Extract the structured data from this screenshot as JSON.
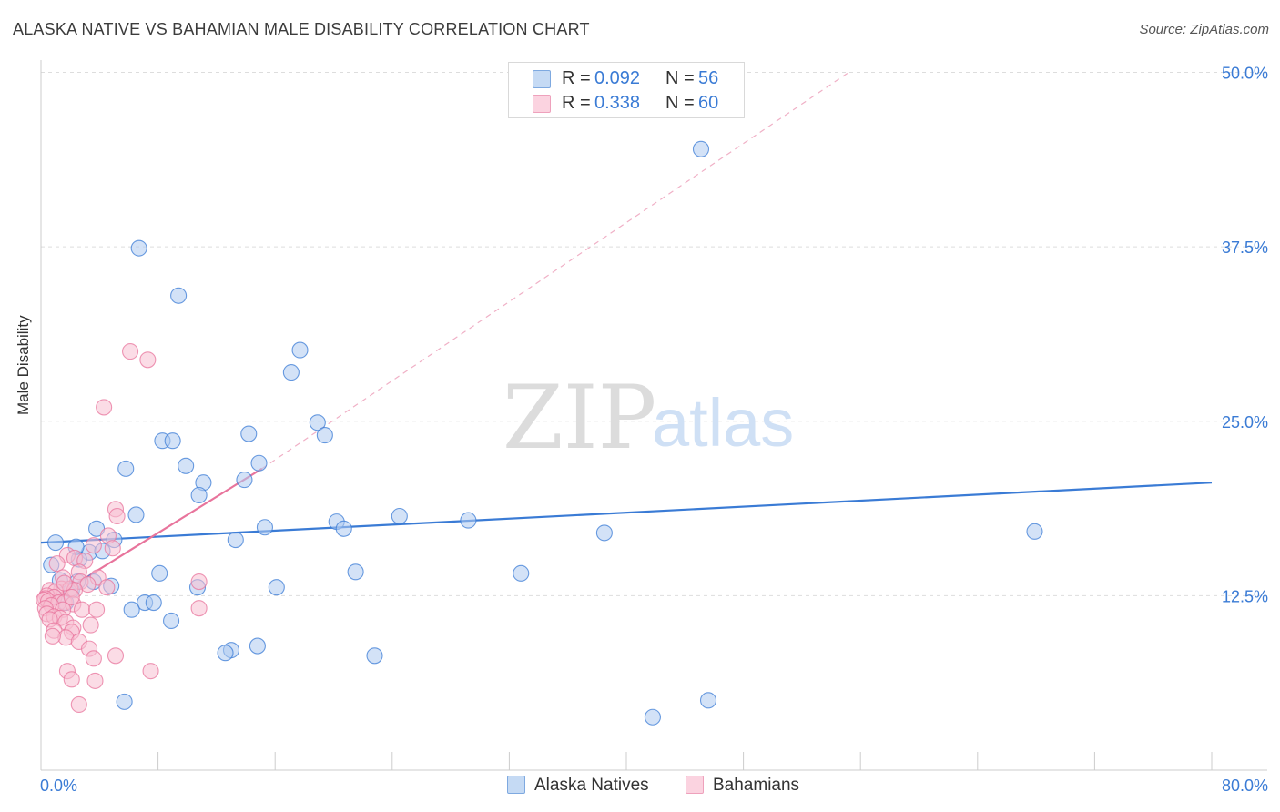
{
  "title": "ALASKA NATIVE VS BAHAMIAN MALE DISABILITY CORRELATION CHART",
  "source": "Source: ZipAtlas.com",
  "colors": {
    "blue": "#3a7bd5",
    "blue_fill": "#aecbf0",
    "pink": "#e8749c",
    "pink_fill": "#f7bfd2",
    "grid": "#dddddd",
    "axis_text": "#3a7bd5"
  },
  "legend": {
    "rows": [
      {
        "r_label": "R =",
        "r_value": "0.092",
        "n_label": "N =",
        "n_value": "56"
      },
      {
        "r_label": "R =",
        "r_value": "0.338",
        "n_label": "N =",
        "n_value": "60"
      }
    ]
  },
  "bottom_legend": {
    "series1": "Alaska Natives",
    "series2": "Bahamians"
  },
  "watermark": {
    "zip": "ZIP",
    "atlas": "atlas"
  },
  "chart_data": {
    "type": "scatter",
    "xlabel": "",
    "ylabel": "Male Disability",
    "xlim": [
      0,
      80
    ],
    "ylim": [
      0,
      52
    ],
    "x_tick_labels": [
      "0.0%",
      "80.0%"
    ],
    "y_ticks": [
      12.5,
      25.0,
      37.5,
      50.0
    ],
    "y_tick_labels": [
      "12.5%",
      "25.0%",
      "37.5%",
      "50.0%"
    ],
    "grid": true,
    "series": [
      {
        "name": "Alaska Natives",
        "r": 0.092,
        "n": 56,
        "trend": {
          "x0": 0,
          "y0": 16.3,
          "x1": 80,
          "y1": 20.6,
          "style": "solid"
        },
        "points": [
          [
            6.7,
            37.4
          ],
          [
            9.4,
            34.0
          ],
          [
            17.7,
            30.1
          ],
          [
            17.1,
            28.5
          ],
          [
            18.9,
            24.9
          ],
          [
            19.4,
            24.0
          ],
          [
            14.2,
            24.1
          ],
          [
            8.3,
            23.6
          ],
          [
            9.0,
            23.6
          ],
          [
            5.8,
            21.6
          ],
          [
            9.9,
            21.8
          ],
          [
            14.9,
            22.0
          ],
          [
            11.1,
            20.6
          ],
          [
            10.8,
            19.7
          ],
          [
            13.9,
            20.8
          ],
          [
            3.8,
            17.3
          ],
          [
            5.0,
            16.5
          ],
          [
            6.5,
            18.3
          ],
          [
            15.3,
            17.4
          ],
          [
            13.3,
            16.5
          ],
          [
            20.2,
            17.8
          ],
          [
            20.7,
            17.3
          ],
          [
            24.5,
            18.2
          ],
          [
            29.2,
            17.9
          ],
          [
            38.5,
            17.0
          ],
          [
            67.9,
            17.1
          ],
          [
            1.0,
            16.3
          ],
          [
            3.3,
            15.6
          ],
          [
            4.2,
            15.7
          ],
          [
            2.6,
            15.1
          ],
          [
            0.7,
            14.7
          ],
          [
            1.3,
            13.6
          ],
          [
            2.5,
            13.5
          ],
          [
            3.6,
            13.5
          ],
          [
            4.8,
            13.2
          ],
          [
            2.1,
            12.9
          ],
          [
            0.9,
            12.4
          ],
          [
            1.7,
            12.0
          ],
          [
            8.1,
            14.1
          ],
          [
            21.5,
            14.2
          ],
          [
            32.8,
            14.1
          ],
          [
            10.7,
            13.1
          ],
          [
            16.1,
            13.1
          ],
          [
            7.1,
            12.0
          ],
          [
            7.7,
            12.0
          ],
          [
            6.2,
            11.5
          ],
          [
            8.9,
            10.7
          ],
          [
            13.0,
            8.6
          ],
          [
            12.6,
            8.4
          ],
          [
            14.8,
            8.9
          ],
          [
            22.8,
            8.2
          ],
          [
            45.1,
            44.5
          ],
          [
            5.7,
            4.9
          ],
          [
            45.6,
            5.0
          ],
          [
            41.8,
            3.8
          ],
          [
            2.4,
            16.0
          ]
        ]
      },
      {
        "name": "Bahamians",
        "r": 0.338,
        "n": 60,
        "trend": {
          "x0": 0,
          "y0": 11.8,
          "x1": 15.1,
          "y1": 21.6,
          "dash_x1": 55.2,
          "dash_y1": 50.0,
          "style": "solid-then-dashed"
        },
        "points": [
          [
            6.1,
            30.0
          ],
          [
            7.3,
            29.4
          ],
          [
            4.3,
            26.0
          ],
          [
            5.1,
            18.7
          ],
          [
            5.2,
            18.2
          ],
          [
            4.6,
            16.8
          ],
          [
            3.6,
            16.1
          ],
          [
            1.8,
            15.4
          ],
          [
            2.3,
            15.2
          ],
          [
            3.0,
            15.0
          ],
          [
            1.1,
            14.8
          ],
          [
            2.6,
            14.2
          ],
          [
            1.5,
            13.8
          ],
          [
            3.9,
            13.8
          ],
          [
            2.7,
            13.5
          ],
          [
            3.2,
            13.3
          ],
          [
            4.5,
            13.1
          ],
          [
            1.4,
            13.0
          ],
          [
            2.0,
            13.0
          ],
          [
            2.3,
            12.9
          ],
          [
            0.6,
            12.9
          ],
          [
            1.0,
            12.8
          ],
          [
            0.4,
            12.5
          ],
          [
            0.9,
            12.4
          ],
          [
            0.3,
            12.3
          ],
          [
            0.2,
            12.2
          ],
          [
            0.5,
            12.1
          ],
          [
            1.2,
            12.0
          ],
          [
            1.6,
            12.0
          ],
          [
            2.2,
            11.9
          ],
          [
            0.7,
            11.8
          ],
          [
            0.3,
            11.6
          ],
          [
            1.5,
            11.5
          ],
          [
            2.8,
            11.5
          ],
          [
            3.8,
            11.5
          ],
          [
            0.4,
            11.2
          ],
          [
            0.9,
            11.0
          ],
          [
            1.3,
            10.9
          ],
          [
            0.6,
            10.8
          ],
          [
            1.7,
            10.6
          ],
          [
            2.2,
            10.2
          ],
          [
            3.4,
            10.4
          ],
          [
            0.9,
            10.0
          ],
          [
            2.1,
            9.9
          ],
          [
            1.7,
            9.5
          ],
          [
            0.8,
            9.6
          ],
          [
            10.8,
            13.5
          ],
          [
            10.8,
            11.6
          ],
          [
            2.6,
            9.2
          ],
          [
            3.3,
            8.7
          ],
          [
            5.1,
            8.2
          ],
          [
            3.6,
            8.0
          ],
          [
            1.8,
            7.1
          ],
          [
            2.1,
            6.5
          ],
          [
            7.5,
            7.1
          ],
          [
            3.7,
            6.4
          ],
          [
            2.6,
            4.7
          ],
          [
            1.6,
            13.4
          ],
          [
            4.9,
            15.9
          ],
          [
            2.1,
            12.4
          ]
        ]
      }
    ]
  }
}
